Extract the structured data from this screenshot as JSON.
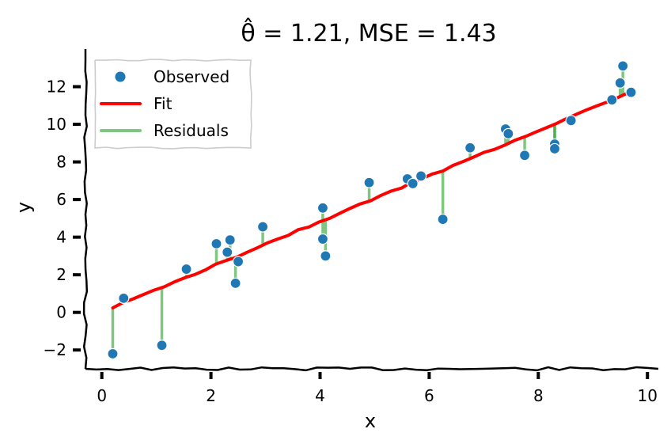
{
  "chart_data": {
    "type": "scatter",
    "title": "θ̂ = 1.21, MSE = 1.43",
    "xlabel": "x",
    "ylabel": "y",
    "xlim": [
      -0.3,
      10.2
    ],
    "ylim": [
      -3.0,
      14.0
    ],
    "xticks": [
      0,
      2,
      4,
      6,
      8,
      10
    ],
    "yticks": [
      -2,
      0,
      2,
      4,
      6,
      8,
      10,
      12
    ],
    "xtick_labels": [
      "0",
      "2",
      "4",
      "6",
      "8",
      "10"
    ],
    "ytick_labels": [
      "−2",
      "0",
      "2",
      "4",
      "6",
      "8",
      "10",
      "12"
    ],
    "grid": false,
    "legend_position": "top-left",
    "style": "hand-drawn (xkcd)",
    "slope": 1.21,
    "mse": 1.43,
    "series": [
      {
        "name": "Observed",
        "kind": "scatter",
        "color": "#1f77b4",
        "x": [
          0.2,
          0.4,
          1.1,
          1.55,
          2.1,
          2.3,
          2.35,
          2.5,
          2.45,
          2.95,
          4.05,
          4.05,
          4.1,
          4.9,
          5.6,
          5.7,
          5.85,
          6.25,
          6.75,
          7.4,
          7.45,
          7.75,
          8.3,
          8.3,
          8.6,
          9.35,
          9.5,
          9.55,
          9.7
        ],
        "y": [
          -2.2,
          0.75,
          -1.75,
          2.3,
          3.65,
          3.2,
          3.85,
          2.7,
          1.55,
          4.55,
          5.55,
          3.9,
          3.0,
          6.9,
          7.1,
          6.85,
          7.25,
          4.95,
          8.75,
          9.75,
          9.5,
          8.35,
          8.95,
          8.7,
          10.2,
          11.3,
          12.2,
          13.1,
          11.7
        ]
      },
      {
        "name": "Fit",
        "kind": "line",
        "color": "#ff0000",
        "x": [
          0.2,
          9.65
        ],
        "y": [
          0.24,
          11.68
        ]
      },
      {
        "name": "Residuals",
        "kind": "segments",
        "color": "#2ca02c"
      }
    ]
  }
}
